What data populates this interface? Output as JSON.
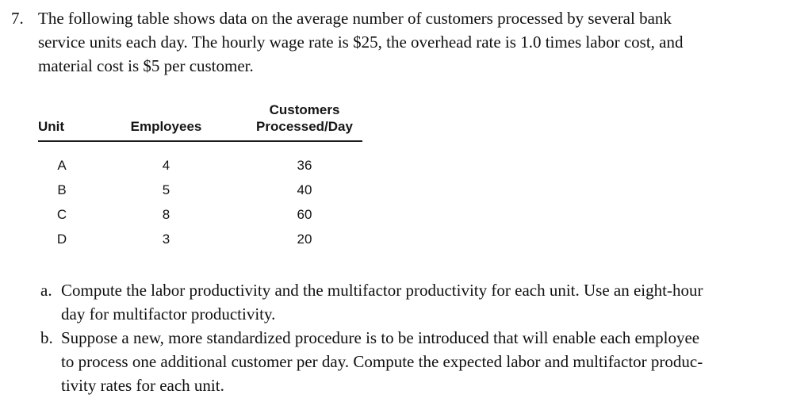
{
  "problem": {
    "number": "7.",
    "intro": "The following table shows data on the average number of customers processed by several bank\nservice units each day. The hourly wage rate is $25, the overhead rate is 1.0 times labor cost, and\nmaterial cost is $5 per customer."
  },
  "table": {
    "headers": {
      "unit": "Unit",
      "employees": "Employees",
      "customers": "Customers\nProcessed/Day"
    },
    "rows": [
      {
        "unit": "A",
        "employees": "4",
        "customers": "36"
      },
      {
        "unit": "B",
        "employees": "5",
        "customers": "40"
      },
      {
        "unit": "C",
        "employees": "8",
        "customers": "60"
      },
      {
        "unit": "D",
        "employees": "3",
        "customers": "20"
      }
    ]
  },
  "parts": [
    {
      "label": "a.",
      "text": "Compute the labor productivity and the multifactor productivity for each unit. Use an eight-hour\nday for multifactor productivity."
    },
    {
      "label": "b.",
      "text": "Suppose a new, more standardized procedure is to be introduced that will enable each employee\nto process one additional customer per day. Compute the expected labor and multifactor produc-\ntivity rates for each unit."
    }
  ]
}
